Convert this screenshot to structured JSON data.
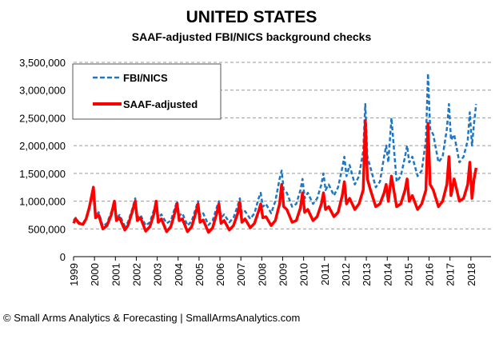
{
  "chart_data": {
    "type": "line",
    "title": "UNITED STATES",
    "subtitle": "SAAF-adjusted FBI/NICS background checks",
    "xlabel": "",
    "ylabel": "",
    "ylim": [
      0,
      3500000
    ],
    "xlim": [
      1999,
      2019
    ],
    "yticks": [
      0,
      500000,
      1000000,
      1500000,
      2000000,
      2500000,
      3000000,
      3500000
    ],
    "ytick_labels": [
      "0",
      "500,000",
      "1,000,000",
      "1,500,000",
      "2,000,000",
      "2,500,000",
      "3,000,000",
      "3,500,000"
    ],
    "xtick_labels": [
      "1999",
      "2000",
      "2001",
      "2002",
      "2003",
      "2004",
      "2005",
      "2006",
      "2007",
      "2008",
      "2009",
      "2010",
      "2011",
      "2012",
      "2013",
      "2014",
      "2015",
      "2016",
      "2017",
      "2018"
    ],
    "grid": "horizontal-dashed",
    "legend_position": "top-left",
    "series": [
      {
        "name": "FBI/NICS",
        "color": "#1f77c4",
        "style": "dashed",
        "x": [
          1999.0,
          1999.1,
          1999.25,
          1999.45,
          1999.6,
          1999.75,
          1999.95,
          2000.05,
          2000.2,
          2000.4,
          2000.6,
          2000.8,
          2000.95,
          2001.05,
          2001.2,
          2001.45,
          2001.6,
          2001.8,
          2001.95,
          2002.05,
          2002.2,
          2002.45,
          2002.65,
          2002.85,
          2002.95,
          2003.05,
          2003.2,
          2003.45,
          2003.65,
          2003.85,
          2003.95,
          2004.05,
          2004.2,
          2004.45,
          2004.65,
          2004.85,
          2004.95,
          2005.05,
          2005.2,
          2005.45,
          2005.65,
          2005.85,
          2005.95,
          2006.05,
          2006.2,
          2006.45,
          2006.65,
          2006.85,
          2006.95,
          2007.05,
          2007.2,
          2007.45,
          2007.65,
          2007.85,
          2007.95,
          2008.05,
          2008.2,
          2008.45,
          2008.65,
          2008.85,
          2008.95,
          2009.05,
          2009.2,
          2009.45,
          2009.65,
          2009.85,
          2009.95,
          2010.05,
          2010.2,
          2010.45,
          2010.65,
          2010.85,
          2010.95,
          2011.05,
          2011.2,
          2011.45,
          2011.65,
          2011.85,
          2011.95,
          2012.05,
          2012.2,
          2012.45,
          2012.65,
          2012.85,
          2012.95,
          2013.05,
          2013.2,
          2013.45,
          2013.65,
          2013.85,
          2013.95,
          2014.05,
          2014.2,
          2014.45,
          2014.65,
          2014.85,
          2014.95,
          2015.05,
          2015.2,
          2015.45,
          2015.65,
          2015.85,
          2015.95,
          2016.05,
          2016.2,
          2016.45,
          2016.65,
          2016.85,
          2016.95,
          2017.05,
          2017.2,
          2017.45,
          2017.65,
          2017.85,
          2017.95,
          2018.05,
          2018.15,
          2018.25
        ],
        "values": [
          650000,
          700000,
          620000,
          600000,
          700000,
          900000,
          1100000,
          750000,
          800000,
          550000,
          600000,
          800000,
          950000,
          700000,
          750000,
          550000,
          620000,
          850000,
          1050000,
          700000,
          750000,
          560000,
          620000,
          850000,
          1000000,
          700000,
          760000,
          600000,
          650000,
          880000,
          1000000,
          740000,
          780000,
          560000,
          640000,
          880000,
          1000000,
          730000,
          780000,
          570000,
          650000,
          890000,
          1000000,
          700000,
          760000,
          620000,
          700000,
          920000,
          1050000,
          780000,
          820000,
          680000,
          780000,
          1050000,
          1150000,
          900000,
          950000,
          780000,
          1000000,
          1400000,
          1550000,
          1200000,
          1150000,
          900000,
          950000,
          1200000,
          1400000,
          1050000,
          1150000,
          950000,
          1050000,
          1300000,
          1500000,
          1200000,
          1300000,
          1100000,
          1250000,
          1600000,
          1800000,
          1450000,
          1650000,
          1300000,
          1450000,
          1900000,
          2750000,
          1800000,
          1600000,
          1250000,
          1350000,
          1800000,
          2000000,
          1700000,
          2500000,
          1350000,
          1450000,
          1800000,
          2000000,
          1700000,
          1800000,
          1450000,
          1550000,
          2100000,
          3300000,
          2300000,
          2200000,
          1700000,
          1800000,
          2300000,
          2750000,
          2100000,
          2200000,
          1700000,
          1800000,
          2100000,
          2600000,
          2000000,
          2400000,
          2750000
        ]
      },
      {
        "name": "SAAF-adjusted",
        "color": "#ff0000",
        "style": "solid",
        "x": [
          1999.0,
          1999.1,
          1999.25,
          1999.45,
          1999.6,
          1999.75,
          1999.95,
          2000.05,
          2000.2,
          2000.4,
          2000.6,
          2000.8,
          2000.95,
          2001.05,
          2001.2,
          2001.45,
          2001.6,
          2001.8,
          2001.95,
          2002.05,
          2002.2,
          2002.45,
          2002.65,
          2002.85,
          2002.95,
          2003.05,
          2003.2,
          2003.45,
          2003.65,
          2003.85,
          2003.95,
          2004.05,
          2004.2,
          2004.45,
          2004.65,
          2004.85,
          2004.95,
          2005.05,
          2005.2,
          2005.45,
          2005.65,
          2005.85,
          2005.95,
          2006.05,
          2006.2,
          2006.45,
          2006.65,
          2006.85,
          2006.95,
          2007.05,
          2007.2,
          2007.45,
          2007.65,
          2007.85,
          2007.95,
          2008.05,
          2008.2,
          2008.45,
          2008.65,
          2008.85,
          2008.95,
          2009.05,
          2009.2,
          2009.45,
          2009.65,
          2009.85,
          2009.95,
          2010.05,
          2010.2,
          2010.45,
          2010.65,
          2010.85,
          2010.95,
          2011.05,
          2011.2,
          2011.45,
          2011.65,
          2011.85,
          2011.95,
          2012.05,
          2012.2,
          2012.45,
          2012.65,
          2012.85,
          2012.95,
          2013.05,
          2013.2,
          2013.45,
          2013.65,
          2013.85,
          2013.95,
          2014.05,
          2014.2,
          2014.45,
          2014.65,
          2014.85,
          2014.95,
          2015.05,
          2015.2,
          2015.45,
          2015.65,
          2015.85,
          2015.95,
          2016.05,
          2016.2,
          2016.45,
          2016.65,
          2016.85,
          2016.95,
          2017.05,
          2017.2,
          2017.45,
          2017.65,
          2017.85,
          2017.95,
          2018.05,
          2018.15,
          2018.25
        ],
        "values": [
          600000,
          680000,
          600000,
          580000,
          680000,
          880000,
          1250000,
          700000,
          750000,
          500000,
          560000,
          750000,
          1000000,
          650000,
          700000,
          480000,
          560000,
          800000,
          1000000,
          650000,
          700000,
          460000,
          540000,
          780000,
          1000000,
          620000,
          680000,
          450000,
          540000,
          800000,
          960000,
          650000,
          680000,
          450000,
          540000,
          800000,
          950000,
          620000,
          660000,
          440000,
          520000,
          780000,
          950000,
          600000,
          650000,
          480000,
          560000,
          780000,
          980000,
          620000,
          680000,
          520000,
          600000,
          820000,
          950000,
          700000,
          720000,
          560000,
          650000,
          950000,
          1300000,
          900000,
          850000,
          620000,
          650000,
          880000,
          1150000,
          800000,
          850000,
          650000,
          720000,
          950000,
          1150000,
          850000,
          900000,
          720000,
          800000,
          1100000,
          1350000,
          950000,
          1050000,
          850000,
          950000,
          1200000,
          2450000,
          1400000,
          1200000,
          900000,
          950000,
          1150000,
          1300000,
          1000000,
          1450000,
          900000,
          950000,
          1200000,
          1400000,
          1000000,
          1100000,
          850000,
          950000,
          1200000,
          2400000,
          1300000,
          1200000,
          900000,
          1000000,
          1300000,
          1800000,
          1100000,
          1400000,
          1000000,
          1050000,
          1300000,
          1700000,
          1050000,
          1400000,
          1600000
        ]
      }
    ]
  },
  "footer": "© Small Arms Analytics & Forecasting | SmallArmsAnalytics.com"
}
